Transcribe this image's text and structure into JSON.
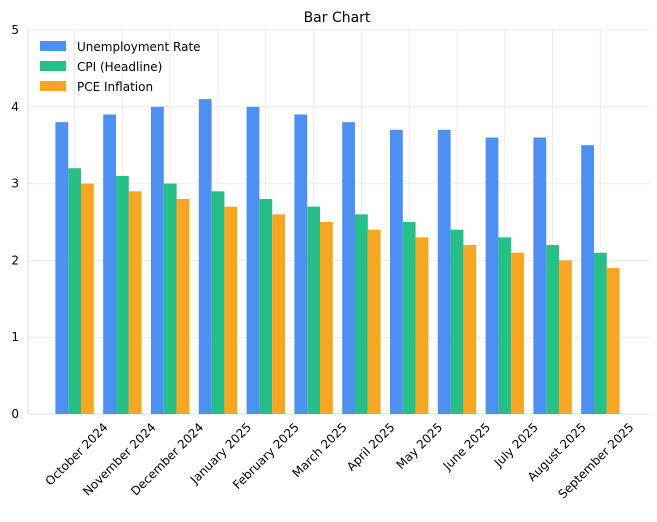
{
  "chart_data": {
    "type": "bar",
    "title": "Bar Chart",
    "xlabel": "",
    "ylabel": "",
    "ylim": [
      0,
      5
    ],
    "yticks": [
      0,
      1,
      2,
      3,
      4,
      5
    ],
    "grid": true,
    "legend_position": "top-left",
    "categories": [
      "October 2024",
      "November 2024",
      "December 2024",
      "January 2025",
      "February 2025",
      "March 2025",
      "April 2025",
      "May 2025",
      "June 2025",
      "July 2025",
      "August 2025",
      "September 2025"
    ],
    "series": [
      {
        "name": "Unemployment Rate",
        "color": "#4e8ff2",
        "values": [
          3.8,
          3.9,
          4.0,
          4.1,
          4.0,
          3.9,
          3.8,
          3.7,
          3.7,
          3.6,
          3.6,
          3.5
        ]
      },
      {
        "name": "CPI (Headline)",
        "color": "#26bf87",
        "values": [
          3.2,
          3.1,
          3.0,
          2.9,
          2.8,
          2.7,
          2.6,
          2.5,
          2.4,
          2.3,
          2.2,
          2.1
        ]
      },
      {
        "name": "PCE Inflation",
        "color": "#f5a623",
        "values": [
          3.0,
          2.9,
          2.8,
          2.7,
          2.6,
          2.5,
          2.4,
          2.3,
          2.2,
          2.1,
          2.0,
          1.9
        ]
      }
    ]
  }
}
